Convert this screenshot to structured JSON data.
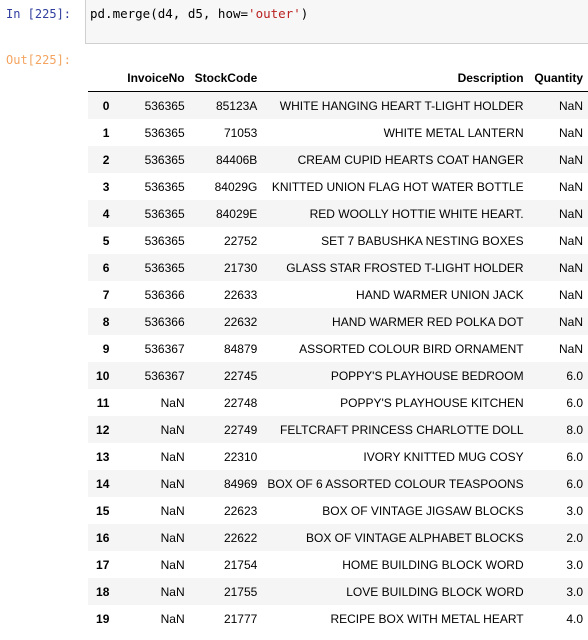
{
  "input": {
    "prompt": "In [225]:",
    "code_prefix": "pd.merge(d4, d5, how=",
    "code_string": "'outer'",
    "code_suffix": ")"
  },
  "output": {
    "prompt": "Out[225]:"
  },
  "table": {
    "columns": [
      "",
      "InvoiceNo",
      "StockCode",
      "Description",
      "Quantity"
    ],
    "rows": [
      {
        "index": "0",
        "InvoiceNo": "536365",
        "StockCode": "85123A",
        "Description": "WHITE HANGING HEART T-LIGHT HOLDER",
        "Quantity": "NaN"
      },
      {
        "index": "1",
        "InvoiceNo": "536365",
        "StockCode": "71053",
        "Description": "WHITE METAL LANTERN",
        "Quantity": "NaN"
      },
      {
        "index": "2",
        "InvoiceNo": "536365",
        "StockCode": "84406B",
        "Description": "CREAM CUPID HEARTS COAT HANGER",
        "Quantity": "NaN"
      },
      {
        "index": "3",
        "InvoiceNo": "536365",
        "StockCode": "84029G",
        "Description": "KNITTED UNION FLAG HOT WATER BOTTLE",
        "Quantity": "NaN"
      },
      {
        "index": "4",
        "InvoiceNo": "536365",
        "StockCode": "84029E",
        "Description": "RED WOOLLY HOTTIE WHITE HEART.",
        "Quantity": "NaN"
      },
      {
        "index": "5",
        "InvoiceNo": "536365",
        "StockCode": "22752",
        "Description": "SET 7 BABUSHKA NESTING BOXES",
        "Quantity": "NaN"
      },
      {
        "index": "6",
        "InvoiceNo": "536365",
        "StockCode": "21730",
        "Description": "GLASS STAR FROSTED T-LIGHT HOLDER",
        "Quantity": "NaN"
      },
      {
        "index": "7",
        "InvoiceNo": "536366",
        "StockCode": "22633",
        "Description": "HAND WARMER UNION JACK",
        "Quantity": "NaN"
      },
      {
        "index": "8",
        "InvoiceNo": "536366",
        "StockCode": "22632",
        "Description": "HAND WARMER RED POLKA DOT",
        "Quantity": "NaN"
      },
      {
        "index": "9",
        "InvoiceNo": "536367",
        "StockCode": "84879",
        "Description": "ASSORTED COLOUR BIRD ORNAMENT",
        "Quantity": "NaN"
      },
      {
        "index": "10",
        "InvoiceNo": "536367",
        "StockCode": "22745",
        "Description": "POPPY'S PLAYHOUSE BEDROOM",
        "Quantity": "6.0"
      },
      {
        "index": "11",
        "InvoiceNo": "NaN",
        "StockCode": "22748",
        "Description": "POPPY'S PLAYHOUSE KITCHEN",
        "Quantity": "6.0"
      },
      {
        "index": "12",
        "InvoiceNo": "NaN",
        "StockCode": "22749",
        "Description": "FELTCRAFT PRINCESS CHARLOTTE DOLL",
        "Quantity": "8.0"
      },
      {
        "index": "13",
        "InvoiceNo": "NaN",
        "StockCode": "22310",
        "Description": "IVORY KNITTED MUG COSY",
        "Quantity": "6.0"
      },
      {
        "index": "14",
        "InvoiceNo": "NaN",
        "StockCode": "84969",
        "Description": "BOX OF 6 ASSORTED COLOUR TEASPOONS",
        "Quantity": "6.0"
      },
      {
        "index": "15",
        "InvoiceNo": "NaN",
        "StockCode": "22623",
        "Description": "BOX OF VINTAGE JIGSAW BLOCKS",
        "Quantity": "3.0"
      },
      {
        "index": "16",
        "InvoiceNo": "NaN",
        "StockCode": "22622",
        "Description": "BOX OF VINTAGE ALPHABET BLOCKS",
        "Quantity": "2.0"
      },
      {
        "index": "17",
        "InvoiceNo": "NaN",
        "StockCode": "21754",
        "Description": "HOME BUILDING BLOCK WORD",
        "Quantity": "3.0"
      },
      {
        "index": "18",
        "InvoiceNo": "NaN",
        "StockCode": "21755",
        "Description": "LOVE BUILDING BLOCK WORD",
        "Quantity": "3.0"
      },
      {
        "index": "19",
        "InvoiceNo": "NaN",
        "StockCode": "21777",
        "Description": "RECIPE BOX WITH METAL HEART",
        "Quantity": "4.0"
      }
    ]
  }
}
